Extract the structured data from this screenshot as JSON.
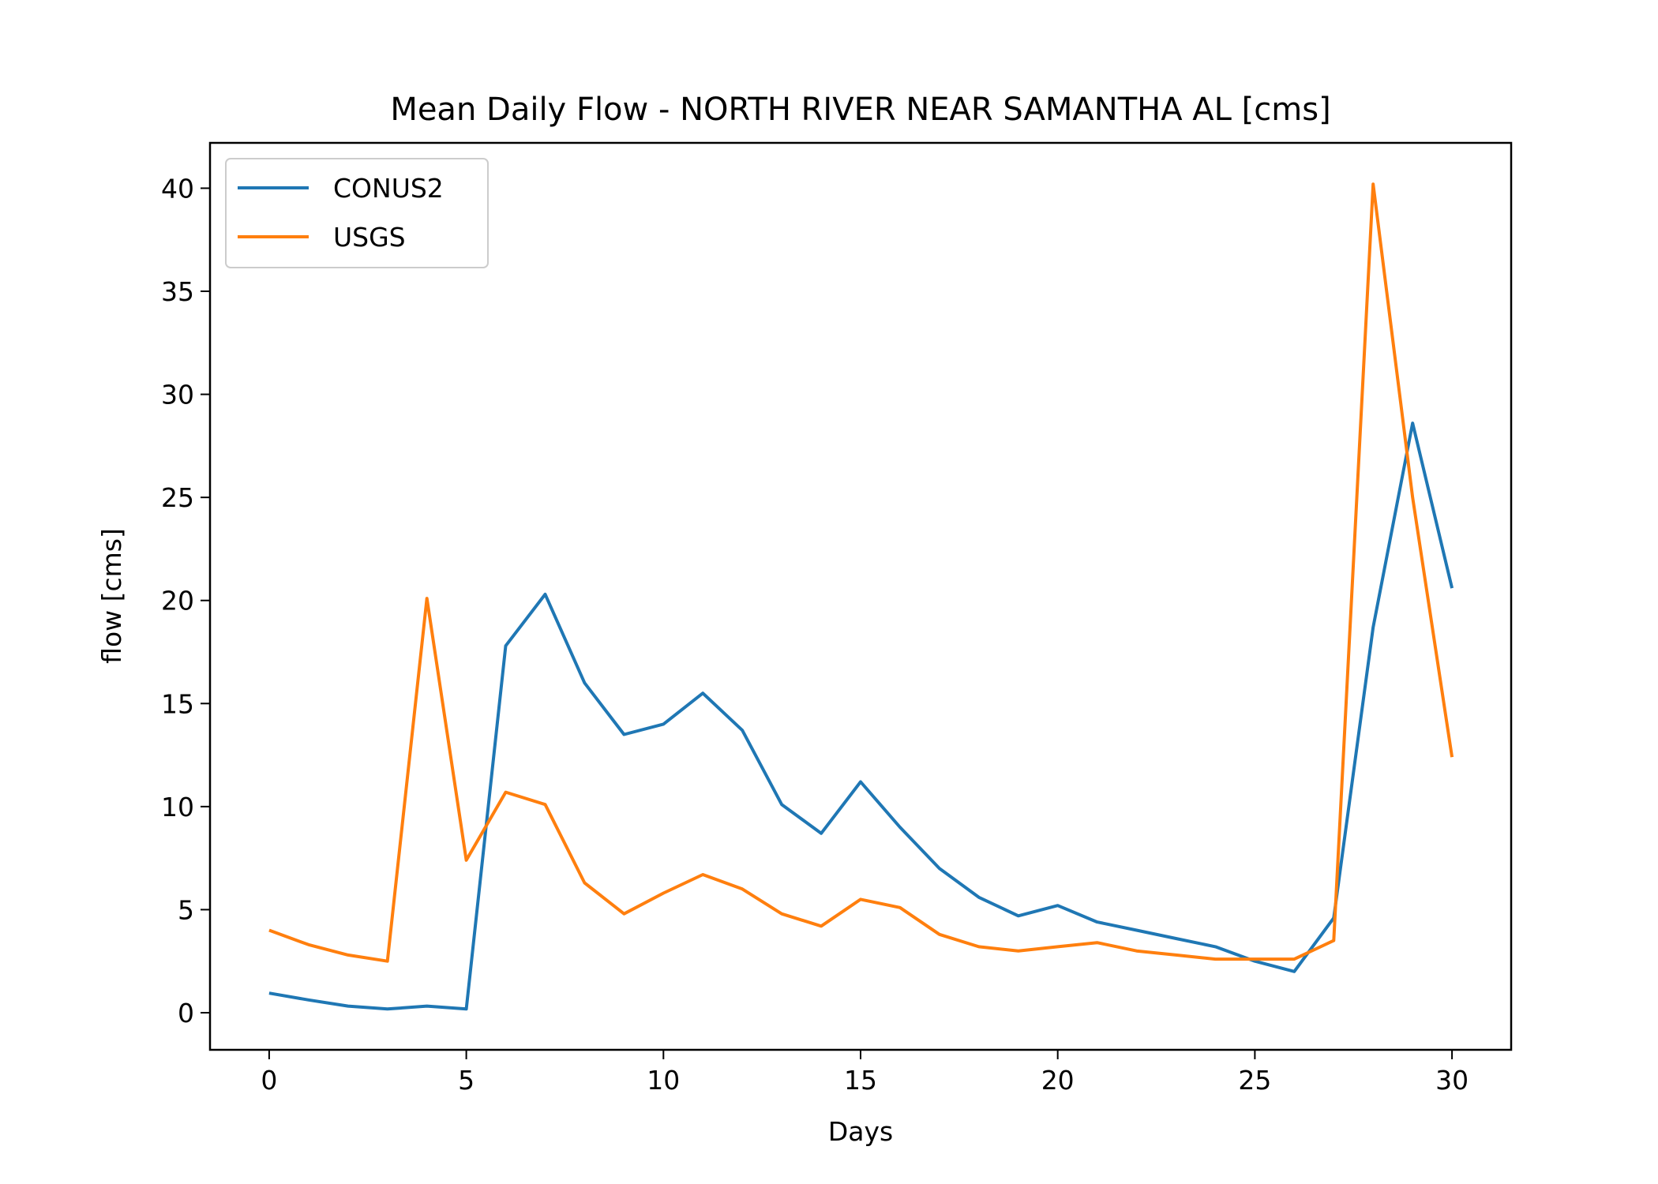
{
  "chart_data": {
    "type": "line",
    "title": "Mean Daily Flow - NORTH RIVER NEAR SAMANTHA AL [cms]",
    "xlabel": "Days",
    "ylabel": "flow [cms]",
    "xlim": [
      -1.5,
      31.5
    ],
    "ylim": [
      -1.8,
      42.2
    ],
    "xticks": [
      0,
      5,
      10,
      15,
      20,
      25,
      30
    ],
    "yticks": [
      0,
      5,
      10,
      15,
      20,
      25,
      30,
      35,
      40
    ],
    "grid": false,
    "legend_position": "top-left",
    "x": [
      0,
      1,
      2,
      3,
      4,
      5,
      6,
      7,
      8,
      9,
      10,
      11,
      12,
      13,
      14,
      15,
      16,
      17,
      18,
      19,
      20,
      21,
      22,
      23,
      24,
      25,
      26,
      27,
      28,
      29,
      30
    ],
    "series": [
      {
        "name": "CONUS2",
        "color": "#1f77b4",
        "values": [
          0.95,
          0.62,
          0.32,
          0.18,
          0.32,
          0.18,
          17.8,
          20.3,
          16.0,
          13.5,
          14.0,
          15.5,
          13.7,
          10.1,
          8.7,
          11.2,
          9.0,
          7.0,
          5.6,
          4.7,
          5.2,
          4.4,
          4.0,
          3.6,
          3.2,
          2.5,
          2.0,
          4.6,
          18.7,
          28.6,
          20.6
        ]
      },
      {
        "name": "USGS",
        "color": "#ff7f0e",
        "values": [
          4.0,
          3.3,
          2.8,
          2.5,
          20.1,
          7.4,
          10.7,
          10.1,
          6.3,
          4.8,
          5.8,
          6.7,
          6.0,
          4.8,
          4.2,
          5.5,
          5.1,
          3.8,
          3.2,
          3.0,
          3.2,
          3.4,
          3.0,
          2.8,
          2.6,
          2.6,
          2.6,
          3.5,
          40.2,
          25.0,
          12.4
        ]
      }
    ]
  }
}
